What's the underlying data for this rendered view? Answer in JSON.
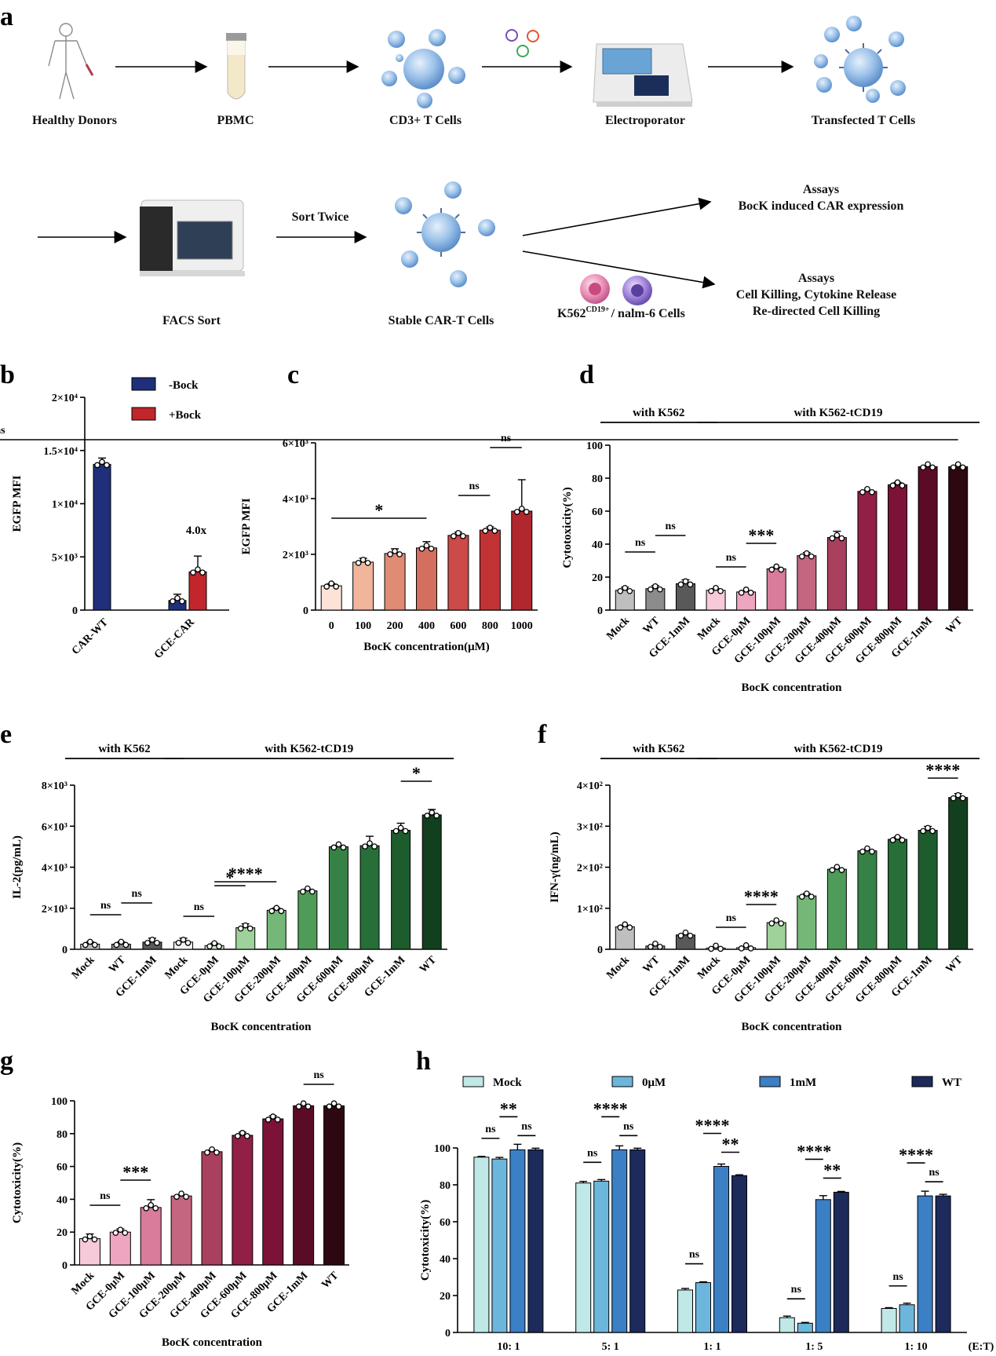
{
  "panel_a": {
    "letter": "a",
    "steps_row1": [
      "Healthy Donors",
      "PBMC",
      "CD3+ T Cells",
      "Electroporator",
      "Transfected  T Cells"
    ],
    "facs_label": "FACS Sort",
    "sort_label": "Sort Twice",
    "stable_label": "Stable CAR-T Cells",
    "assay1_title": "Assays",
    "assay1_line": "BocK induced CAR expression",
    "assay2_title": "Assays",
    "assay2_line1": "Cell Killing,  Cytokine Release",
    "assay2_line2": "Re-directed Cell Killing",
    "target_cells_prefix": "K562",
    "target_cells_sup": "CD19+",
    "target_cells_suffix": "/ nalm-6 Cells"
  },
  "chart_data": [
    {
      "id": "b",
      "letter": "b",
      "type": "bar",
      "categories": [
        "CAR-WT",
        "GCE-CAR"
      ],
      "series": [
        {
          "name": "-Bock",
          "values": [
            13700,
            900
          ],
          "color": "#1f2f7a"
        },
        {
          "name": "+Bock",
          "values": [
            null,
            3600
          ],
          "color": "#c0262b"
        }
      ],
      "ylabel": "EGFP MFI",
      "ylim": [
        0,
        20000
      ],
      "ytick_labels": [
        "0",
        "5×10³",
        "1×10⁴",
        "1.5×10⁴",
        "2×10⁴"
      ],
      "annotation": "4.0x"
    },
    {
      "id": "c",
      "letter": "c",
      "type": "bar",
      "categories": [
        "0",
        "100",
        "200",
        "400",
        "600",
        "800",
        "1000"
      ],
      "values": [
        870,
        1720,
        2030,
        2230,
        2680,
        2870,
        3550
      ],
      "colors": [
        "#fde3d6",
        "#f0b59b",
        "#e08b74",
        "#d46e5f",
        "#cc4a47",
        "#c13335",
        "#b0272d"
      ],
      "xlabel": "BocK concentration(μM)",
      "ylabel": "EGFP MFI",
      "ylim": [
        0,
        6000
      ],
      "ytick_labels": [
        "0",
        "2×10³",
        "4×10³",
        "6×10³"
      ],
      "significance": [
        "*",
        "ns",
        "ns"
      ]
    },
    {
      "id": "d",
      "letter": "d",
      "type": "bar",
      "categories": [
        "Mock",
        "WT",
        "GCE-1mM",
        "Mock",
        "GCE-0μM",
        "GCE-100μM",
        "GCE-200μM",
        "GCE-400μM",
        "GCE-600μM",
        "GCE-800μM",
        "GCE-1mM",
        "WT"
      ],
      "values": [
        12,
        13,
        16,
        12,
        11,
        25,
        33,
        44,
        72,
        76,
        87,
        87
      ],
      "colors": [
        "#bfbfbf",
        "#8c8c8c",
        "#595959",
        "#f7c9d9",
        "#eea6c0",
        "#d97b9b",
        "#c4667f",
        "#a8405e",
        "#921f45",
        "#7c1238",
        "#5a0c27",
        "#2d0810"
      ],
      "xlabel": "BocK concentration",
      "ylabel": "Cytotoxicity(%)",
      "ylim": [
        0,
        100
      ],
      "ytick_labels": [
        "0",
        "20",
        "40",
        "60",
        "80",
        "100"
      ],
      "group_labels": [
        "with K562",
        "with K562-tCD19"
      ],
      "significance": [
        "ns",
        "ns",
        "ns",
        "***",
        "ns"
      ]
    },
    {
      "id": "e",
      "letter": "e",
      "type": "bar",
      "categories": [
        "Mock",
        "WT",
        "GCE-1mM",
        "Mock",
        "GCE-0μM",
        "GCE-100μM",
        "GCE-200μM",
        "GCE-400μM",
        "GCE-600μM",
        "GCE-800μM",
        "GCE-1mM",
        "WT"
      ],
      "values": [
        250,
        250,
        350,
        350,
        180,
        1050,
        1900,
        2850,
        5000,
        5050,
        5800,
        6550
      ],
      "colors": [
        "#bfbfbf",
        "#8c8c8c",
        "#595959",
        "#f3f3f3",
        "#c9e6c5",
        "#9fd19a",
        "#74b777",
        "#4f9c5a",
        "#368246",
        "#276e38",
        "#1d5c2d",
        "#123f1d"
      ],
      "xlabel": "BocK concentration",
      "ylabel": "IL-2(pg/mL)",
      "ylim": [
        0,
        8000
      ],
      "ytick_labels": [
        "0",
        "2×10³",
        "4×10³",
        "6×10³",
        "8×10³"
      ],
      "group_labels": [
        "with K562",
        "with K562-tCD19"
      ],
      "significance": [
        "ns",
        "ns",
        "ns",
        "*",
        "****",
        "*"
      ]
    },
    {
      "id": "f",
      "letter": "f",
      "type": "bar",
      "categories": [
        "Mock",
        "WT",
        "GCE-1mM",
        "Mock",
        "GCE-0μM",
        "GCE-100μM",
        "GCE-200μM",
        "GCE-400μM",
        "GCE-600μM",
        "GCE-800μM",
        "GCE-1mM",
        "WT"
      ],
      "values": [
        55,
        8,
        35,
        3,
        4,
        65,
        130,
        195,
        240,
        268,
        290,
        370
      ],
      "colors": [
        "#bfbfbf",
        "#8c8c8c",
        "#595959",
        "#f3f3f3",
        "#c9e6c5",
        "#9fd19a",
        "#74b777",
        "#4f9c5a",
        "#368246",
        "#276e38",
        "#1d5c2d",
        "#123f1d"
      ],
      "xlabel": "BocK concentration",
      "ylabel": "IFN-γ(ng/mL)",
      "ylim": [
        0,
        400
      ],
      "ytick_labels": [
        "0",
        "1×10²",
        "2×10²",
        "3×10²",
        "4×10²"
      ],
      "group_labels": [
        "with K562",
        "with K562-tCD19"
      ],
      "significance": [
        "ns",
        "****",
        "****"
      ]
    },
    {
      "id": "g",
      "letter": "g",
      "type": "bar",
      "categories": [
        "Mock",
        "GCE-0μM",
        "GCE-100μM",
        "GCE-200μM",
        "GCE-400μM",
        "GCE-600μM",
        "GCE-800μM",
        "GCE-1mM",
        "WT"
      ],
      "values": [
        16,
        20,
        35,
        42,
        69,
        79,
        89,
        97,
        97
      ],
      "colors": [
        "#f7c9d9",
        "#eea6c0",
        "#d97b9b",
        "#c4667f",
        "#a8405e",
        "#921f45",
        "#7c1238",
        "#5a0c27",
        "#2d0810"
      ],
      "xlabel": "BocK concentration",
      "ylabel": "Cytotoxicity(%)",
      "ylim": [
        0,
        100
      ],
      "ytick_labels": [
        "0",
        "20",
        "40",
        "60",
        "80",
        "100"
      ],
      "significance": [
        "ns",
        "***",
        "ns"
      ]
    },
    {
      "id": "h",
      "letter": "h",
      "type": "bar",
      "categories": [
        "10: 1",
        "5: 1",
        "1: 1",
        "1: 5",
        "1: 10"
      ],
      "series": [
        {
          "name": "Mock",
          "values": [
            95,
            81,
            23,
            8,
            13
          ],
          "color": "#bfe8e6"
        },
        {
          "name": "0μM",
          "values": [
            94,
            82,
            27,
            5,
            15
          ],
          "color": "#6cb6dc"
        },
        {
          "name": "1mM",
          "values": [
            99,
            99,
            90,
            72,
            74
          ],
          "color": "#3b7fc4"
        },
        {
          "name": "WT",
          "values": [
            99,
            99,
            85,
            76,
            74
          ],
          "color": "#1c2a5c"
        }
      ],
      "xlabel": "(E:T)",
      "ylabel": "Cytotoxicity(%)",
      "ylim": [
        0,
        100
      ],
      "ytick_labels": [
        "0",
        "20",
        "40",
        "60",
        "80",
        "100"
      ],
      "significance": [
        [
          "ns",
          "**",
          "ns"
        ],
        [
          "ns",
          "****",
          "ns"
        ],
        [
          "ns",
          "****",
          "**"
        ],
        [
          "ns",
          "****",
          "**"
        ],
        [
          "ns",
          "****",
          "ns"
        ]
      ]
    }
  ]
}
